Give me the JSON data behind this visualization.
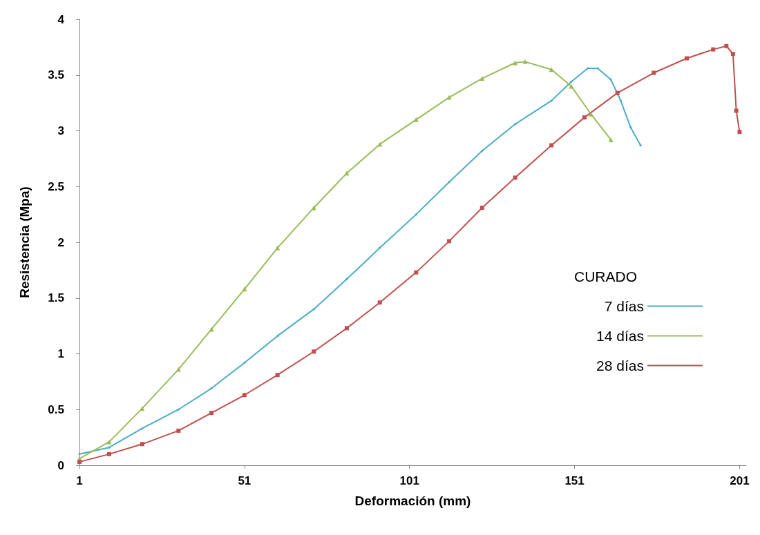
{
  "chart_data": {
    "type": "line",
    "xlabel": "Deformación (mm)",
    "ylabel": "Resistencia (Mpa)",
    "legend_title": "CURADO",
    "legend": "right",
    "grid": false,
    "xlim": [
      1,
      203
    ],
    "xticks": [
      1,
      51,
      101,
      151,
      201
    ],
    "ylim": [
      0,
      4
    ],
    "yticks": [
      0,
      0.5,
      1,
      1.5,
      2,
      2.5,
      3,
      3.5,
      4
    ],
    "series": [
      {
        "name": "7 días",
        "color": "#4bacc6",
        "marker": "diamond",
        "x": [
          1,
          10,
          20,
          31,
          41,
          51,
          61,
          72,
          82,
          92,
          103,
          113,
          123,
          133,
          144,
          150,
          155,
          158,
          162,
          165,
          168,
          171
        ],
        "values": [
          0.1,
          0.16,
          0.33,
          0.5,
          0.69,
          0.92,
          1.16,
          1.4,
          1.67,
          1.95,
          2.25,
          2.54,
          2.82,
          3.06,
          3.27,
          3.44,
          3.56,
          3.56,
          3.46,
          3.27,
          3.03,
          2.87
        ]
      },
      {
        "name": "14 días",
        "color": "#9bbb59",
        "marker": "triangle",
        "x": [
          1,
          10,
          20,
          31,
          41,
          51,
          61,
          72,
          82,
          92,
          103,
          113,
          123,
          133,
          136,
          144,
          150,
          156,
          162
        ],
        "values": [
          0.06,
          0.21,
          0.51,
          0.86,
          1.22,
          1.58,
          1.95,
          2.31,
          2.62,
          2.88,
          3.1,
          3.3,
          3.47,
          3.61,
          3.62,
          3.55,
          3.4,
          3.15,
          2.92
        ]
      },
      {
        "name": "28 días",
        "color": "#c0504d",
        "marker": "square",
        "x": [
          1,
          10,
          20,
          31,
          41,
          51,
          61,
          72,
          82,
          92,
          103,
          113,
          123,
          133,
          144,
          154,
          164,
          175,
          185,
          193,
          197,
          199,
          200,
          201
        ],
        "values": [
          0.03,
          0.1,
          0.19,
          0.31,
          0.47,
          0.63,
          0.81,
          1.02,
          1.23,
          1.46,
          1.73,
          2.01,
          2.31,
          2.58,
          2.87,
          3.12,
          3.34,
          3.52,
          3.65,
          3.73,
          3.76,
          3.69,
          3.18,
          2.99
        ]
      }
    ]
  }
}
